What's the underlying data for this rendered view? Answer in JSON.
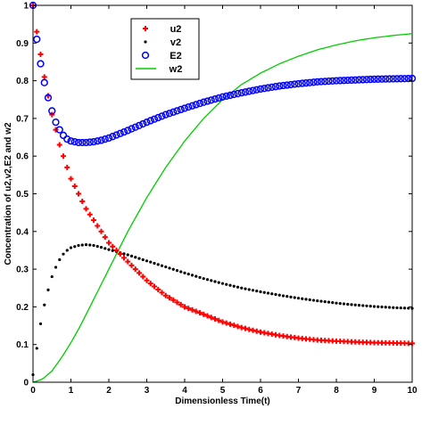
{
  "chart_data": {
    "type": "line",
    "title": "",
    "xlabel": "Dimensionless Time(t)",
    "ylabel": "Concentration of u2,v2,E2 and w2",
    "xlim": [
      0,
      10
    ],
    "ylim": [
      0,
      1
    ],
    "xticks": [
      "0",
      "1",
      "2",
      "3",
      "4",
      "5",
      "6",
      "7",
      "8",
      "9",
      "10"
    ],
    "yticks": [
      "0",
      "0.1",
      "0.2",
      "0.3",
      "0.4",
      "0.5",
      "0.6",
      "0.7",
      "0.8",
      "0.9",
      "1"
    ],
    "grid": false,
    "legend_position": "top-left",
    "series": [
      {
        "name": "u2",
        "style": "plus-markers",
        "color": "#ff0000",
        "x": [
          0,
          0.1,
          0.2,
          0.3,
          0.4,
          0.5,
          0.6,
          0.7,
          0.8,
          0.9,
          1,
          1.2,
          1.4,
          1.6,
          1.8,
          2,
          2.5,
          3,
          3.5,
          4,
          4.5,
          5,
          5.5,
          6,
          6.5,
          7,
          7.5,
          8,
          8.5,
          9,
          9.5,
          10
        ],
        "y": [
          1,
          0.93,
          0.87,
          0.81,
          0.76,
          0.71,
          0.67,
          0.63,
          0.6,
          0.57,
          0.54,
          0.5,
          0.46,
          0.43,
          0.4,
          0.37,
          0.32,
          0.27,
          0.23,
          0.2,
          0.18,
          0.16,
          0.145,
          0.133,
          0.124,
          0.117,
          0.112,
          0.109,
          0.107,
          0.105,
          0.104,
          0.103
        ]
      },
      {
        "name": "v2",
        "style": "dot-markers",
        "color": "#000000",
        "x": [
          0,
          0.1,
          0.2,
          0.3,
          0.4,
          0.5,
          0.6,
          0.7,
          0.8,
          0.9,
          1,
          1.2,
          1.4,
          1.6,
          1.8,
          2,
          2.5,
          3,
          3.5,
          4,
          4.5,
          5,
          5.5,
          6,
          6.5,
          7,
          7.5,
          8,
          8.5,
          9,
          9.5,
          10
        ],
        "y": [
          0.02,
          0.09,
          0.155,
          0.205,
          0.245,
          0.28,
          0.305,
          0.325,
          0.34,
          0.35,
          0.357,
          0.363,
          0.365,
          0.363,
          0.358,
          0.352,
          0.338,
          0.322,
          0.306,
          0.29,
          0.275,
          0.262,
          0.25,
          0.24,
          0.231,
          0.223,
          0.216,
          0.21,
          0.205,
          0.201,
          0.198,
          0.196
        ]
      },
      {
        "name": "E2",
        "style": "circle-markers",
        "color": "#0000ff",
        "x": [
          0,
          0.1,
          0.2,
          0.3,
          0.4,
          0.5,
          0.6,
          0.7,
          0.8,
          0.9,
          1,
          1.2,
          1.4,
          1.6,
          1.8,
          2,
          2.5,
          3,
          3.5,
          4,
          4.5,
          5,
          5.5,
          6,
          6.5,
          7,
          7.5,
          8,
          8.5,
          9,
          9.5,
          10
        ],
        "y": [
          1,
          0.91,
          0.845,
          0.795,
          0.755,
          0.72,
          0.69,
          0.67,
          0.655,
          0.645,
          0.64,
          0.636,
          0.636,
          0.638,
          0.642,
          0.648,
          0.668,
          0.69,
          0.71,
          0.727,
          0.743,
          0.757,
          0.768,
          0.778,
          0.786,
          0.792,
          0.797,
          0.8,
          0.802,
          0.804,
          0.805,
          0.806
        ]
      },
      {
        "name": "w2",
        "style": "line",
        "color": "#00cc00",
        "x": [
          0,
          0.25,
          0.5,
          0.75,
          1,
          1.25,
          1.5,
          1.75,
          2,
          2.5,
          3,
          3.5,
          4,
          4.5,
          5,
          5.5,
          6,
          6.5,
          7,
          7.5,
          8,
          8.5,
          9,
          9.5,
          10
        ],
        "y": [
          0,
          0.008,
          0.03,
          0.065,
          0.105,
          0.15,
          0.2,
          0.25,
          0.3,
          0.4,
          0.49,
          0.57,
          0.64,
          0.7,
          0.75,
          0.79,
          0.82,
          0.845,
          0.865,
          0.882,
          0.895,
          0.906,
          0.914,
          0.92,
          0.925
        ]
      }
    ]
  }
}
